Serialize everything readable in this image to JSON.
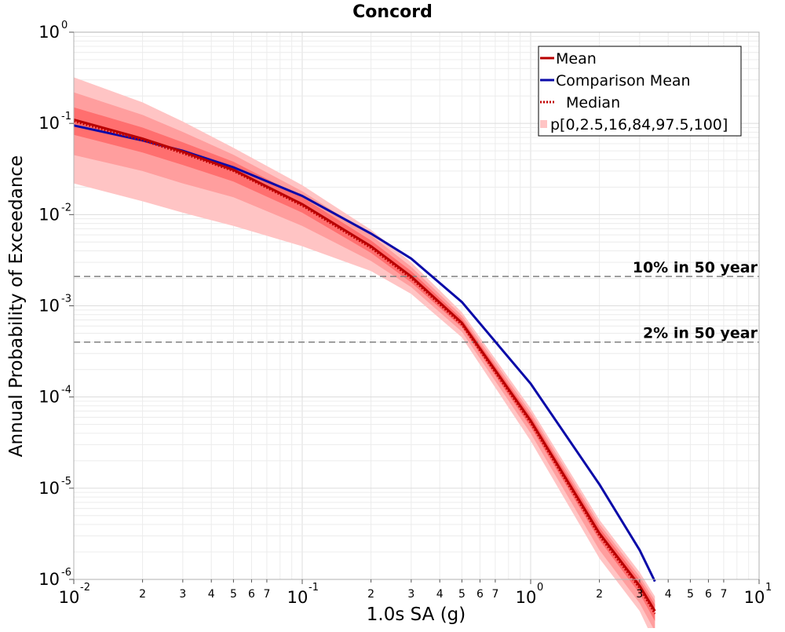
{
  "chart_data": {
    "type": "line",
    "title": "Concord",
    "xlabel": "1.0s SA (g)",
    "ylabel": "Annual Probability of Exceedance",
    "xscale": "log",
    "yscale": "log",
    "xlim": [
      0.01,
      10
    ],
    "ylim": [
      1e-06,
      1
    ],
    "grid": true,
    "legend_position": "top-right",
    "x_major_ticks": [
      {
        "base": "10",
        "exp": "-2",
        "value": 0.01
      },
      {
        "base": "10",
        "exp": "-1",
        "value": 0.1
      },
      {
        "base": "10",
        "exp": "0",
        "value": 1
      },
      {
        "base": "10",
        "exp": "1",
        "value": 10
      }
    ],
    "x_minor_labels": [
      "2",
      "3",
      "4",
      "5",
      "6",
      "7"
    ],
    "y_major_ticks": [
      {
        "base": "10",
        "exp": "0",
        "value": 1
      },
      {
        "base": "10",
        "exp": "-1",
        "value": 0.1
      },
      {
        "base": "10",
        "exp": "-2",
        "value": 0.01
      },
      {
        "base": "10",
        "exp": "-3",
        "value": 0.001
      },
      {
        "base": "10",
        "exp": "-4",
        "value": 0.0001
      },
      {
        "base": "10",
        "exp": "-5",
        "value": 1e-05
      },
      {
        "base": "10",
        "exp": "-6",
        "value": 1e-06
      }
    ],
    "x": [
      0.01,
      0.02,
      0.03,
      0.05,
      0.1,
      0.2,
      0.3,
      0.5,
      1.0,
      2.0,
      3.0,
      3.5
    ],
    "series": [
      {
        "name": "Mean",
        "color": "#b80000",
        "style": "solid",
        "values": [
          0.11,
          0.068,
          0.049,
          0.031,
          0.013,
          0.0045,
          0.0021,
          0.00065,
          5.5e-05,
          3.2e-06,
          8.5e-07,
          4.5e-07
        ]
      },
      {
        "name": "Comparison Mean",
        "color": "#0a0aa8",
        "style": "solid",
        "values": [
          0.095,
          0.065,
          0.05,
          0.033,
          0.016,
          0.0062,
          0.0033,
          0.0011,
          0.00014,
          1.1e-05,
          2.1e-06,
          9.5e-07
        ]
      },
      {
        "name": "Median",
        "color": "#c00000",
        "style": "dotted",
        "values": [
          0.105,
          0.065,
          0.047,
          0.03,
          0.0125,
          0.0043,
          0.002,
          0.00062,
          5.2e-05,
          3e-06,
          8e-07,
          4.2e-07
        ]
      }
    ],
    "bands": [
      {
        "name": "p[0,2.5,16,84,97.5,100]",
        "range": "0-100",
        "color": "#ffc4c4",
        "lower": [
          0.022,
          0.014,
          0.0105,
          0.0075,
          0.0045,
          0.0024,
          0.00135,
          0.00045,
          3.3e-05,
          1.7e-06,
          4.5e-07,
          2e-07
        ],
        "upper": [
          0.32,
          0.17,
          0.105,
          0.054,
          0.021,
          0.0068,
          0.003,
          0.00085,
          7.5e-05,
          4.5e-06,
          1.2e-06,
          6.5e-07
        ]
      },
      {
        "range": "2.5-97.5",
        "color": "#ff9e9e",
        "lower": [
          0.045,
          0.03,
          0.022,
          0.0155,
          0.0075,
          0.0031,
          0.0016,
          0.00052,
          4e-05,
          2.1e-06,
          5.5e-07,
          2.7e-07
        ]
      },
      {
        "range": "16-84",
        "color": "#ff6f6f",
        "lower": [
          0.075,
          0.048,
          0.035,
          0.023,
          0.0105,
          0.0038,
          0.0018,
          0.00058,
          4.7e-05,
          2.7e-06,
          7e-07,
          3.5e-07
        ],
        "upper": [
          0.15,
          0.09,
          0.062,
          0.038,
          0.0155,
          0.0052,
          0.0024,
          0.00072,
          6.2e-05,
          3.7e-06,
          9.8e-07,
          5.3e-07
        ]
      }
    ],
    "reference_lines": [
      {
        "label": "10% in 50 year",
        "y": 0.0021,
        "style": "dashed",
        "color": "#808080"
      },
      {
        "label": "2% in 50 year",
        "y": 0.0004,
        "style": "dashed",
        "color": "#808080"
      }
    ],
    "legend": [
      {
        "label": "Mean",
        "type": "line-solid",
        "color": "#b80000"
      },
      {
        "label": "Comparison Mean",
        "type": "line-solid",
        "color": "#0a0aa8"
      },
      {
        "label": "Median",
        "type": "line-dotted",
        "color": "#c00000"
      },
      {
        "label": "p[0,2.5,16,84,97.5,100]",
        "type": "patch",
        "color": "#ffc4c4"
      }
    ]
  }
}
